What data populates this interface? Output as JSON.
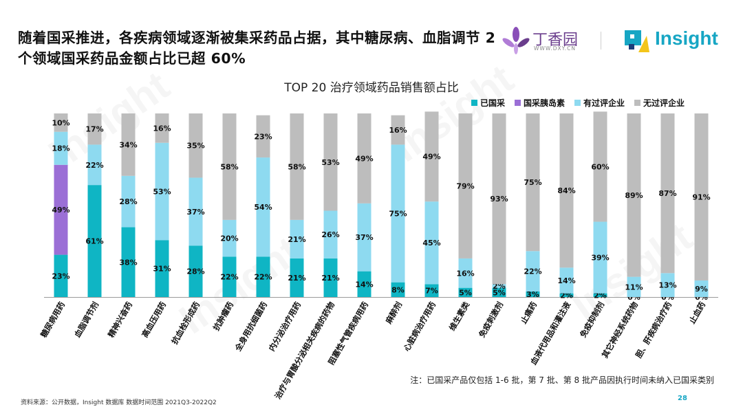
{
  "header": {
    "headline": "随着国采推进，各疾病领域逐渐被集采药品占据，其中糖尿病、血脂调节 2 个领域国采药品金额占比已超 60%",
    "logo_dxy_name": "丁香园",
    "logo_dxy_url": "WWW.DXY.CN",
    "logo_insight_name": "Insight",
    "watermark_text": "Insight"
  },
  "colors": {
    "national": "#0fb5c4",
    "insulin": "#9b6fd6",
    "evaluated": "#8edaf0",
    "not_evaluated": "#bdbdbd",
    "brand_purple": "#8a4fb8",
    "brand_teal": "#17a6c4"
  },
  "chart_data": {
    "type": "bar",
    "stacked": true,
    "percent": true,
    "title": "TOP 20 治疗领域药品销售额占比",
    "legend_position": "top-right",
    "ylim": [
      0,
      100
    ],
    "categories": [
      "糖尿病用药",
      "血脂调节剂",
      "精神兴奋药",
      "高血压用药",
      "抗血栓形成药",
      "抗肿瘤药",
      "全身用抗细菌药",
      "内分泌治疗用药",
      "治疗与胃酸分泌相关疾病的药物",
      "阻塞性气管疾病用药",
      "麻醉剂",
      "心脏病治疗用药",
      "维生素类",
      "免疫刺激剂",
      "止痛药",
      "血液代用品和灌注液",
      "免疫抑制剂",
      "其它神经系统药物",
      "胆、肝疾病治疗药",
      "止血药"
    ],
    "series": [
      {
        "name": "已国采",
        "color_key": "national",
        "values": [
          23,
          61,
          38,
          31,
          28,
          22,
          22,
          21,
          21,
          14,
          8,
          7,
          5,
          5,
          3,
          2,
          2,
          0,
          0,
          0
        ],
        "labels": [
          "23%",
          "61%",
          "38%",
          "31%",
          "28%",
          "22%",
          "22%",
          "21%",
          "21%",
          "14%",
          "8%",
          "7%",
          "5%",
          "5%",
          "3%",
          "2%",
          "2%",
          "0%",
          "0%",
          "0%"
        ]
      },
      {
        "name": "国采胰岛素",
        "color_key": "insulin",
        "values": [
          49,
          0,
          0,
          0,
          0,
          0,
          0,
          0,
          0,
          0,
          0,
          0,
          0,
          0,
          0,
          0,
          0,
          0,
          0,
          0
        ],
        "labels": [
          "49%",
          "",
          "",
          "",
          "",
          "",
          "",
          "",
          "",
          "",
          "",
          "",
          "",
          "",
          "",
          "",
          "",
          "",
          "",
          ""
        ]
      },
      {
        "name": "有过评企业",
        "color_key": "evaluated",
        "values": [
          18,
          22,
          28,
          53,
          37,
          20,
          54,
          21,
          26,
          37,
          75,
          45,
          16,
          2,
          22,
          14,
          39,
          11,
          13,
          9
        ],
        "labels": [
          "18%",
          "22%",
          "28%",
          "53%",
          "37%",
          "20%",
          "54%",
          "21%",
          "26%",
          "37%",
          "75%",
          "45%",
          "16%",
          "2%",
          "22%",
          "14%",
          "39%",
          "11%",
          "13%",
          "9%"
        ]
      },
      {
        "name": "无过评企业",
        "color_key": "not_evaluated",
        "values": [
          10,
          17,
          34,
          16,
          35,
          58,
          23,
          58,
          53,
          49,
          16,
          49,
          79,
          93,
          75,
          84,
          60,
          89,
          87,
          91
        ],
        "labels": [
          "10%",
          "17%",
          "34%",
          "16%",
          "35%",
          "58%",
          "23%",
          "58%",
          "53%",
          "49%",
          "16%",
          "49%",
          "79%",
          "93%",
          "75%",
          "84%",
          "60%",
          "89%",
          "87%",
          "91%"
        ]
      }
    ]
  },
  "footer": {
    "note": "注：已国采产品仅包括 1-6 批，第 7 批、第 8 批产品因执行时间未纳入已国采类别",
    "source": "资料来源：公开数据，Insight 数据库   数据时间范围 2021Q3-2022Q2",
    "page_number": "28"
  }
}
